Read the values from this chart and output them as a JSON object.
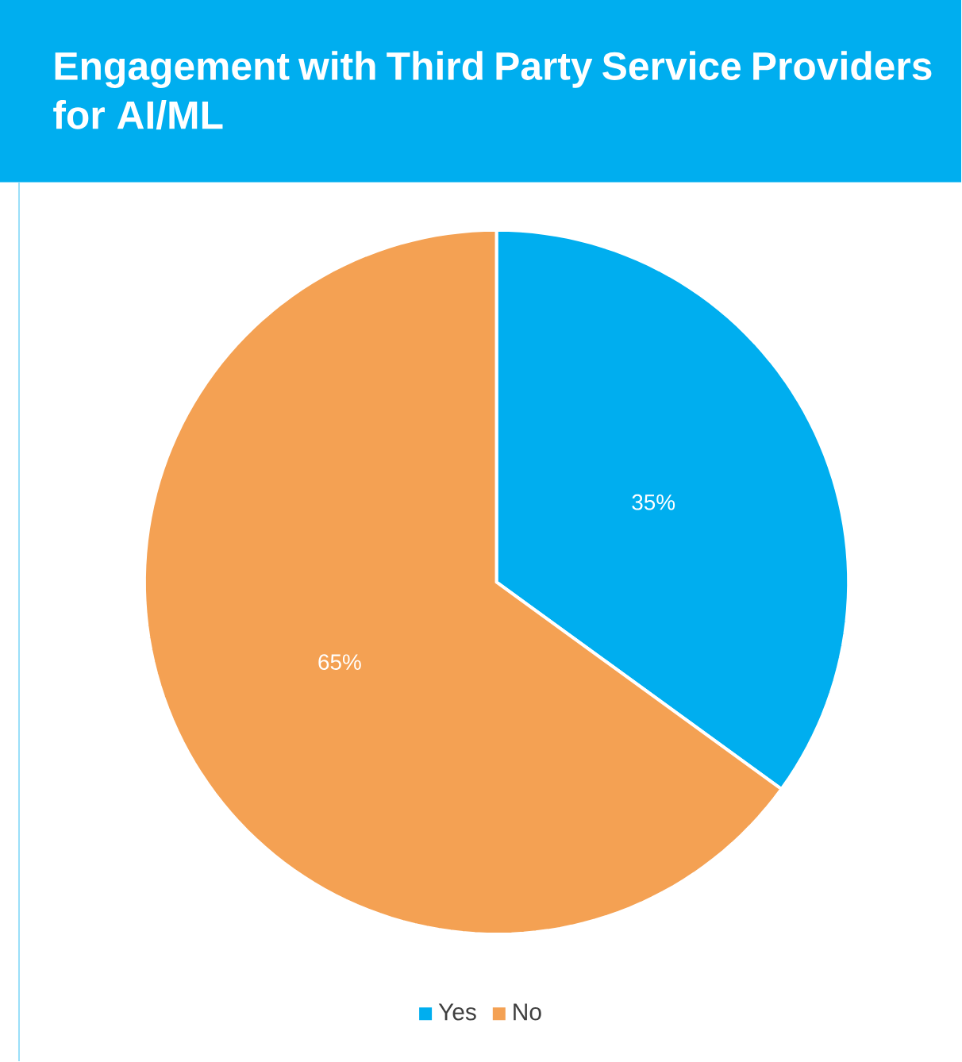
{
  "chart_data": {
    "type": "pie",
    "title": "Engagement with Third Party Service Providers for AI/ML",
    "categories": [
      "Yes",
      "No"
    ],
    "values": [
      35,
      65
    ],
    "colors": [
      "#00aeef",
      "#f4a153"
    ],
    "value_labels": [
      "35%",
      "65%"
    ],
    "legend": "bottom"
  }
}
